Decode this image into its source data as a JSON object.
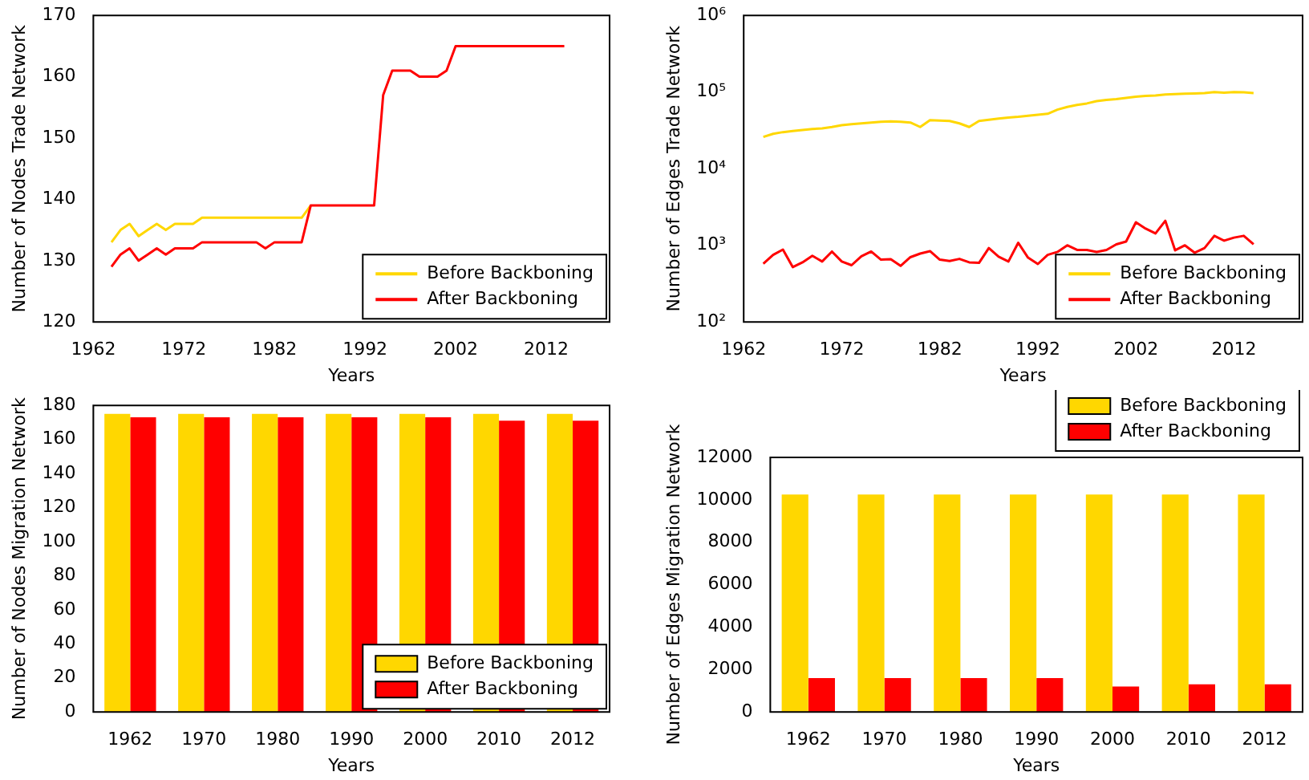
{
  "chart_data": [
    {
      "type": "line",
      "xlabel": "Years",
      "ylabel": "Number of Nodes Trade Network",
      "x": [
        1964,
        1965,
        1966,
        1967,
        1968,
        1969,
        1970,
        1971,
        1972,
        1973,
        1974,
        1975,
        1976,
        1977,
        1978,
        1979,
        1980,
        1981,
        1982,
        1983,
        1984,
        1985,
        1986,
        1987,
        1988,
        1989,
        1990,
        1991,
        1992,
        1993,
        1994,
        1995,
        1996,
        1997,
        1998,
        1999,
        2000,
        2001,
        2002,
        2003,
        2004,
        2005,
        2006,
        2007,
        2008,
        2009,
        2010,
        2011,
        2012,
        2013,
        2014
      ],
      "series": [
        {
          "name": "Before Backboning",
          "color": "#ffd700",
          "values": [
            133,
            135,
            136,
            134,
            135,
            136,
            135,
            136,
            136,
            136,
            137,
            137,
            137,
            137,
            137,
            137,
            137,
            137,
            137,
            137,
            137,
            137,
            139,
            null,
            null,
            null,
            null,
            null,
            null,
            null,
            null,
            null,
            null,
            null,
            null,
            null,
            null,
            null,
            null,
            null,
            null,
            null,
            null,
            null,
            null,
            null,
            null,
            null,
            null,
            null,
            null
          ]
        },
        {
          "name": "After Backboning",
          "color": "#ff0000",
          "values": [
            129,
            131,
            132,
            130,
            131,
            132,
            131,
            132,
            132,
            132,
            133,
            133,
            133,
            133,
            133,
            133,
            133,
            132,
            133,
            133,
            133,
            133,
            139,
            139,
            139,
            139,
            139,
            139,
            139,
            139,
            157,
            161,
            161,
            161,
            160,
            160,
            160,
            161,
            165,
            165,
            165,
            165,
            165,
            165,
            165,
            165,
            165,
            165,
            165,
            165,
            165
          ]
        }
      ],
      "xlim": [
        1962,
        2019
      ],
      "xticks": [
        1962,
        1972,
        1982,
        1992,
        2002,
        2012
      ],
      "ylim": [
        120,
        170
      ],
      "yticks": [
        120,
        130,
        140,
        150,
        160,
        170
      ],
      "legend": "bottom right",
      "grid": false
    },
    {
      "type": "line",
      "xlabel": "Years",
      "ylabel": "Number of Edges Trade Network",
      "log": "y",
      "x": [
        1964,
        1965,
        1966,
        1967,
        1968,
        1969,
        1970,
        1971,
        1972,
        1973,
        1974,
        1975,
        1976,
        1977,
        1978,
        1979,
        1980,
        1981,
        1982,
        1983,
        1984,
        1985,
        1986,
        1987,
        1988,
        1989,
        1990,
        1991,
        1992,
        1993,
        1994,
        1995,
        1996,
        1997,
        1998,
        1999,
        2000,
        2001,
        2002,
        2003,
        2004,
        2005,
        2006,
        2007,
        2008,
        2009,
        2010,
        2011,
        2012,
        2013,
        2014
      ],
      "series": [
        {
          "name": "Before Backboning",
          "color": "#ffd700",
          "values": [
            26000,
            28500,
            30000,
            31000,
            32000,
            33000,
            33500,
            35000,
            37000,
            38000,
            39000,
            40000,
            41000,
            41500,
            41000,
            40000,
            35000,
            43000,
            42500,
            42000,
            39000,
            35000,
            42000,
            43500,
            45000,
            46500,
            47500,
            49000,
            50500,
            52000,
            59000,
            64000,
            68000,
            71000,
            76000,
            79000,
            81000,
            84000,
            87000,
            89000,
            90000,
            93000,
            94000,
            95000,
            96000,
            97000,
            100000,
            98000,
            100000,
            99000,
            97000
          ]
        },
        {
          "name": "After Backboning",
          "color": "#ff0000",
          "values": [
            575,
            750,
            880,
            520,
            600,
            730,
            615,
            830,
            615,
            550,
            720,
            830,
            650,
            660,
            540,
            700,
            780,
            840,
            650,
            625,
            665,
            600,
            590,
            920,
            710,
            615,
            1080,
            690,
            570,
            750,
            820,
            1000,
            870,
            870,
            820,
            870,
            1030,
            1120,
            2000,
            1650,
            1430,
            2090,
            860,
            1000,
            800,
            920,
            1330,
            1150,
            1260,
            1330,
            1030
          ]
        }
      ],
      "xlim": [
        1962,
        2019
      ],
      "xticks": [
        1962,
        1972,
        1982,
        1992,
        2002,
        2012
      ],
      "ylim": [
        100,
        1000000
      ],
      "yticks": [
        {
          "value": 100,
          "label": "10²"
        },
        {
          "value": 1000,
          "label": "10³"
        },
        {
          "value": 10000,
          "label": "10⁴"
        },
        {
          "value": 100000,
          "label": "10⁵"
        },
        {
          "value": 1000000,
          "label": "10⁶"
        }
      ],
      "legend": "bottom right",
      "grid": false
    },
    {
      "type": "bar",
      "xlabel": "Years",
      "ylabel": "Number of Nodes Migration Network",
      "categories": [
        "1962",
        "1970",
        "1980",
        "1990",
        "2000",
        "2010",
        "2012"
      ],
      "series": [
        {
          "name": "Before Backboning",
          "color": "#ffd700",
          "values": [
            175,
            175,
            175,
            175,
            175,
            175,
            175
          ]
        },
        {
          "name": "After Backboning",
          "color": "#ff0000",
          "values": [
            173,
            173,
            173,
            173,
            173,
            171,
            171
          ]
        }
      ],
      "ylim": [
        0,
        180
      ],
      "yticks": [
        0,
        20,
        40,
        60,
        80,
        100,
        120,
        140,
        160,
        180
      ],
      "legend": "bottom right",
      "grid": false
    },
    {
      "type": "bar",
      "xlabel": "Years",
      "ylabel": "Number of Edges Migration Network",
      "categories": [
        "1962",
        "1970",
        "1980",
        "1990",
        "2000",
        "2010",
        "2012"
      ],
      "series": [
        {
          "name": "Before Backboning",
          "color": "#ffd700",
          "values": [
            10250,
            10250,
            10250,
            10250,
            10250,
            10250,
            10250
          ]
        },
        {
          "name": "After Backboning",
          "color": "#ff0000",
          "values": [
            1600,
            1600,
            1600,
            1600,
            1200,
            1300,
            1300
          ]
        }
      ],
      "ylim": [
        0,
        12000
      ],
      "yticks": [
        0,
        2000,
        4000,
        6000,
        8000,
        10000,
        12000
      ],
      "legend": "top right",
      "grid": false
    }
  ]
}
